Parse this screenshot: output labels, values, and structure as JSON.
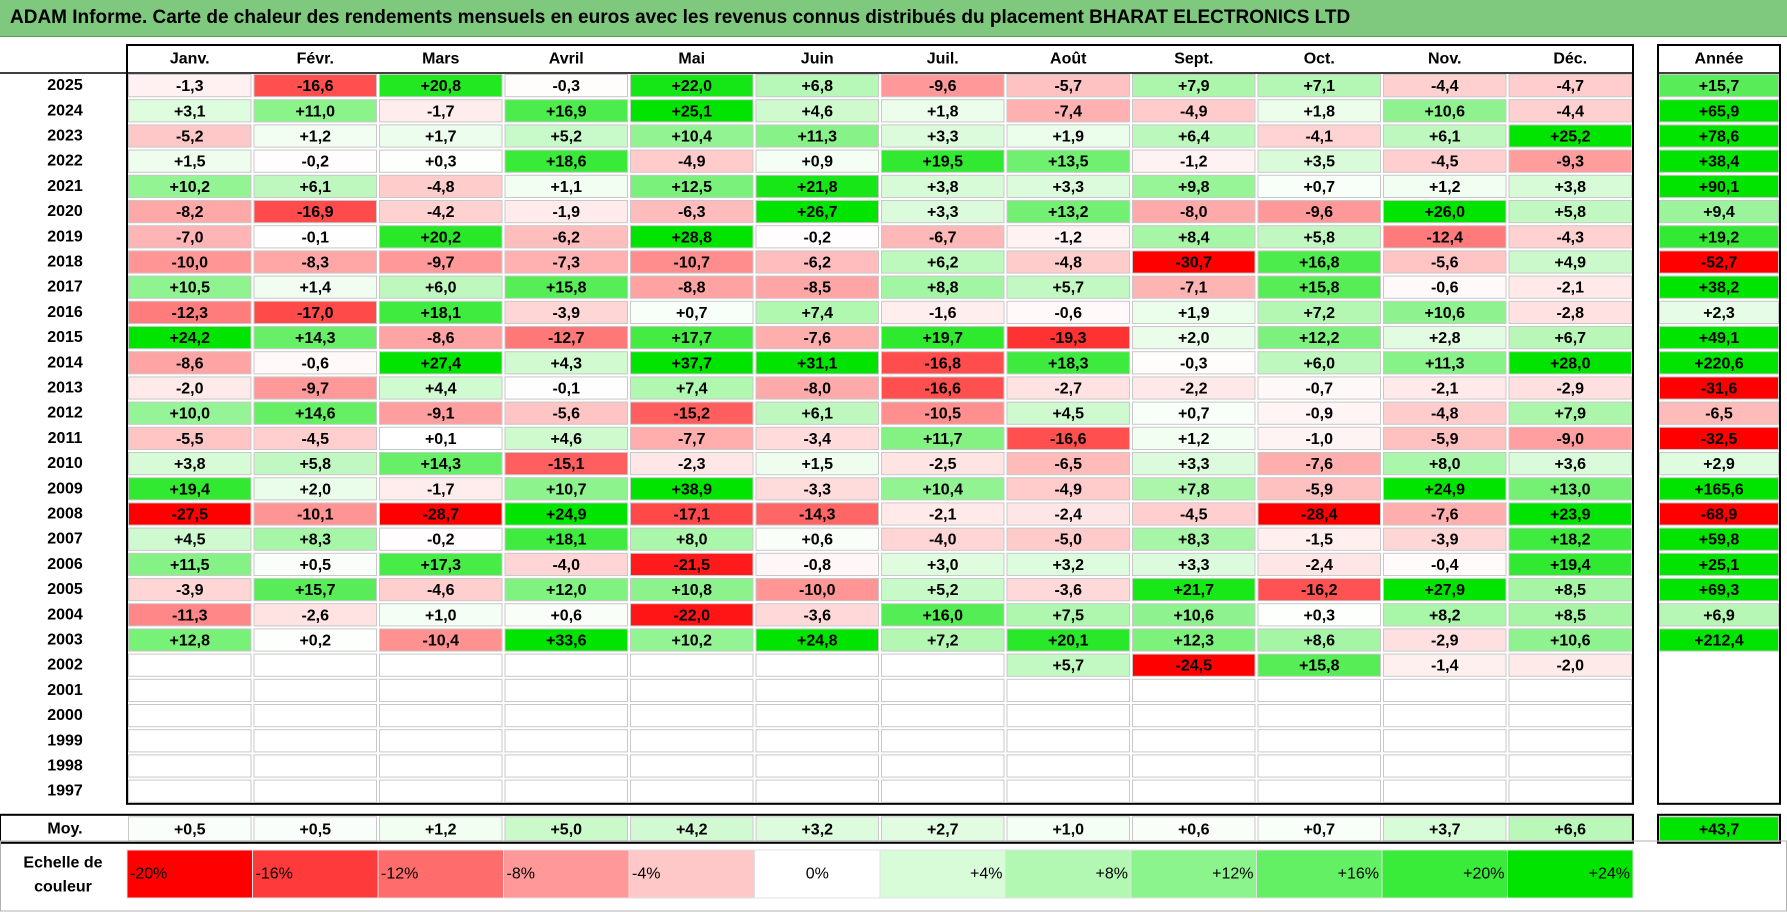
{
  "title": "ADAM Informe. Carte de chaleur des rendements mensuels en euros avec les revenus connus distribués du placement BHARAT ELECTRONICS LTD",
  "chart_data": {
    "type": "heatmap",
    "columns": [
      "Janv.",
      "Févr.",
      "Mars",
      "Avril",
      "Mai",
      "Juin",
      "Juil.",
      "Août",
      "Sept.",
      "Oct.",
      "Nov.",
      "Déc."
    ],
    "year_column_label": "Année",
    "rows": [
      {
        "year": "2025",
        "months": [
          "-1,3",
          "-16,6",
          "+20,8",
          "-0,3",
          "+22,0",
          "+6,8",
          "-9,6",
          "-5,7",
          "+7,9",
          "+7,1",
          "-4,4",
          "-4,7"
        ],
        "annual": "+15,7"
      },
      {
        "year": "2024",
        "months": [
          "+3,1",
          "+11,0",
          "-1,7",
          "+16,9",
          "+25,1",
          "+4,6",
          "+1,8",
          "-7,4",
          "-4,9",
          "+1,8",
          "+10,6",
          "-4,4"
        ],
        "annual": "+65,9"
      },
      {
        "year": "2023",
        "months": [
          "-5,2",
          "+1,2",
          "+1,7",
          "+5,2",
          "+10,4",
          "+11,3",
          "+3,3",
          "+1,9",
          "+6,4",
          "-4,1",
          "+6,1",
          "+25,2"
        ],
        "annual": "+78,6"
      },
      {
        "year": "2022",
        "months": [
          "+1,5",
          "-0,2",
          "+0,3",
          "+18,6",
          "-4,9",
          "+0,9",
          "+19,5",
          "+13,5",
          "-1,2",
          "+3,5",
          "-4,5",
          "-9,3"
        ],
        "annual": "+38,4"
      },
      {
        "year": "2021",
        "months": [
          "+10,2",
          "+6,1",
          "-4,8",
          "+1,1",
          "+12,5",
          "+21,8",
          "+3,8",
          "+3,3",
          "+9,8",
          "+0,7",
          "+1,2",
          "+3,8"
        ],
        "annual": "+90,1"
      },
      {
        "year": "2020",
        "months": [
          "-8,2",
          "-16,9",
          "-4,2",
          "-1,9",
          "-6,3",
          "+26,7",
          "+3,3",
          "+13,2",
          "-8,0",
          "-9,6",
          "+26,0",
          "+5,8"
        ],
        "annual": "+9,4"
      },
      {
        "year": "2019",
        "months": [
          "-7,0",
          "-0,1",
          "+20,2",
          "-6,2",
          "+28,8",
          "-0,2",
          "-6,7",
          "-1,2",
          "+8,4",
          "+5,8",
          "-12,4",
          "-4,3"
        ],
        "annual": "+19,2"
      },
      {
        "year": "2018",
        "months": [
          "-10,0",
          "-8,3",
          "-9,7",
          "-7,3",
          "-10,7",
          "-6,2",
          "+6,2",
          "-4,8",
          "-30,7",
          "+16,8",
          "-5,6",
          "+4,9"
        ],
        "annual": "-52,7"
      },
      {
        "year": "2017",
        "months": [
          "+10,5",
          "+1,4",
          "+6,0",
          "+15,8",
          "-8,8",
          "-8,5",
          "+8,8",
          "+5,7",
          "-7,1",
          "+15,8",
          "-0,6",
          "-2,1"
        ],
        "annual": "+38,2"
      },
      {
        "year": "2016",
        "months": [
          "-12,3",
          "-17,0",
          "+18,1",
          "-3,9",
          "+0,7",
          "+7,4",
          "-1,6",
          "-0,6",
          "+1,9",
          "+7,2",
          "+10,6",
          "-2,8"
        ],
        "annual": "+2,3"
      },
      {
        "year": "2015",
        "months": [
          "+24,2",
          "+14,3",
          "-8,6",
          "-12,7",
          "+17,7",
          "-7,6",
          "+19,7",
          "-19,3",
          "+2,0",
          "+12,2",
          "+2,8",
          "+6,7"
        ],
        "annual": "+49,1"
      },
      {
        "year": "2014",
        "months": [
          "-8,6",
          "-0,6",
          "+27,4",
          "+4,3",
          "+37,7",
          "+31,1",
          "-16,8",
          "+18,3",
          "-0,3",
          "+6,0",
          "+11,3",
          "+28,0"
        ],
        "annual": "+220,6"
      },
      {
        "year": "2013",
        "months": [
          "-2,0",
          "-9,7",
          "+4,4",
          "-0,1",
          "+7,4",
          "-8,0",
          "-16,6",
          "-2,7",
          "-2,2",
          "-0,7",
          "-2,1",
          "-2,9"
        ],
        "annual": "-31,6"
      },
      {
        "year": "2012",
        "months": [
          "+10,0",
          "+14,6",
          "-9,1",
          "-5,6",
          "-15,2",
          "+6,1",
          "-10,5",
          "+4,5",
          "+0,7",
          "-0,9",
          "-4,8",
          "+7,9"
        ],
        "annual": "-6,5"
      },
      {
        "year": "2011",
        "months": [
          "-5,5",
          "-4,5",
          "+0,1",
          "+4,6",
          "-7,7",
          "-3,4",
          "+11,7",
          "-16,6",
          "+1,2",
          "-1,0",
          "-5,9",
          "-9,0"
        ],
        "annual": "-32,5"
      },
      {
        "year": "2010",
        "months": [
          "+3,8",
          "+5,8",
          "+14,3",
          "-15,1",
          "-2,3",
          "+1,5",
          "-2,5",
          "-6,5",
          "+3,3",
          "-7,6",
          "+8,0",
          "+3,6"
        ],
        "annual": "+2,9"
      },
      {
        "year": "2009",
        "months": [
          "+19,4",
          "+2,0",
          "-1,7",
          "+10,7",
          "+38,9",
          "-3,3",
          "+10,4",
          "-4,9",
          "+7,8",
          "-5,9",
          "+24,9",
          "+13,0"
        ],
        "annual": "+165,6"
      },
      {
        "year": "2008",
        "months": [
          "-27,5",
          "-10,1",
          "-28,7",
          "+24,9",
          "-17,1",
          "-14,3",
          "-2,1",
          "-2,4",
          "-4,5",
          "-28,4",
          "-7,6",
          "+23,9"
        ],
        "annual": "-68,9"
      },
      {
        "year": "2007",
        "months": [
          "+4,5",
          "+8,3",
          "-0,2",
          "+18,1",
          "+8,0",
          "+0,6",
          "-4,0",
          "-5,0",
          "+8,3",
          "-1,5",
          "-3,9",
          "+18,2"
        ],
        "annual": "+59,8"
      },
      {
        "year": "2006",
        "months": [
          "+11,5",
          "+0,5",
          "+17,3",
          "-4,0",
          "-21,5",
          "-0,8",
          "+3,0",
          "+3,2",
          "+3,3",
          "-2,4",
          "-0,4",
          "+19,4"
        ],
        "annual": "+25,1"
      },
      {
        "year": "2005",
        "months": [
          "-3,9",
          "+15,7",
          "-4,6",
          "+12,0",
          "+10,8",
          "-10,0",
          "+5,2",
          "-3,6",
          "+21,7",
          "-16,2",
          "+27,9",
          "+8,5"
        ],
        "annual": "+69,3"
      },
      {
        "year": "2004",
        "months": [
          "-11,3",
          "-2,6",
          "+1,0",
          "+0,6",
          "-22,0",
          "-3,6",
          "+16,0",
          "+7,5",
          "+10,6",
          "+0,3",
          "+8,2",
          "+8,5"
        ],
        "annual": "+6,9"
      },
      {
        "year": "2003",
        "months": [
          "+12,8",
          "+0,2",
          "-10,4",
          "+33,6",
          "+10,2",
          "+24,8",
          "+7,2",
          "+20,1",
          "+12,3",
          "+8,6",
          "-2,9",
          "+10,6"
        ],
        "annual": "+212,4"
      },
      {
        "year": "2002",
        "months": [
          "",
          "",
          "",
          "",
          "",
          "",
          "",
          "+5,7",
          "-24,5",
          "+15,8",
          "-1,4",
          "-2,0"
        ],
        "annual": ""
      },
      {
        "year": "2001",
        "months": [
          "",
          "",
          "",
          "",
          "",
          "",
          "",
          "",
          "",
          "",
          "",
          ""
        ],
        "annual": ""
      },
      {
        "year": "2000",
        "months": [
          "",
          "",
          "",
          "",
          "",
          "",
          "",
          "",
          "",
          "",
          "",
          ""
        ],
        "annual": ""
      },
      {
        "year": "1999",
        "months": [
          "",
          "",
          "",
          "",
          "",
          "",
          "",
          "",
          "",
          "",
          "",
          ""
        ],
        "annual": ""
      },
      {
        "year": "1998",
        "months": [
          "",
          "",
          "",
          "",
          "",
          "",
          "",
          "",
          "",
          "",
          "",
          ""
        ],
        "annual": ""
      },
      {
        "year": "1997",
        "months": [
          "",
          "",
          "",
          "",
          "",
          "",
          "",
          "",
          "",
          "",
          "",
          ""
        ],
        "annual": ""
      }
    ],
    "average": {
      "label": "Moy.",
      "months": [
        "+0,5",
        "+0,5",
        "+1,2",
        "+5,0",
        "+4,2",
        "+3,2",
        "+2,7",
        "+1,0",
        "+0,6",
        "+0,7",
        "+3,7",
        "+6,6"
      ],
      "annual": "+43,7"
    },
    "scale": {
      "label_line1": "Echelle de",
      "label_line2": "couleur",
      "steps": [
        {
          "label": "-20%",
          "color": "#ff0000"
        },
        {
          "label": "-16%",
          "color": "#ff3a3a"
        },
        {
          "label": "-12%",
          "color": "#ff6c6c"
        },
        {
          "label": "-8%",
          "color": "#ff9999"
        },
        {
          "label": "-4%",
          "color": "#ffc8c8"
        },
        {
          "label": "0%",
          "color": "#ffffff"
        },
        {
          "label": "+4%",
          "color": "#d8fbd8"
        },
        {
          "label": "+8%",
          "color": "#b2f7b2"
        },
        {
          "label": "+12%",
          "color": "#8cf48c"
        },
        {
          "label": "+16%",
          "color": "#64f064"
        },
        {
          "label": "+20%",
          "color": "#3aec3a"
        },
        {
          "label": "+24%",
          "color": "#00e400"
        }
      ]
    },
    "colors": {
      "positive_max": "#00e400",
      "negative_max": "#ff0000",
      "neutral": "#ffffff"
    }
  }
}
